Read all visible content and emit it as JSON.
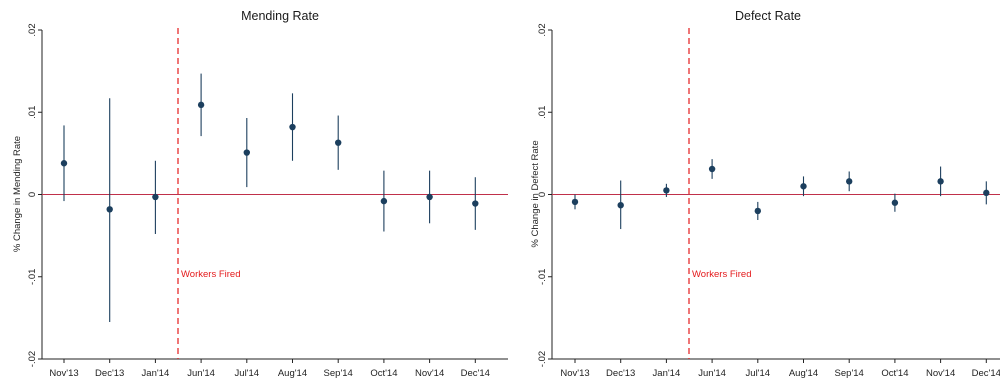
{
  "chart_data": [
    {
      "type": "scatter",
      "title": "Mending Rate",
      "ylabel": "% Change in Mending Rate",
      "xlabel": "",
      "categories": [
        "Nov'13",
        "Dec'13",
        "Jan'14",
        "Jun'14",
        "Jul'14",
        "Aug'14",
        "Sep'14",
        "Oct'14",
        "Nov'14",
        "Dec'14"
      ],
      "values": [
        0.0038,
        -0.0018,
        -0.0003,
        0.0109,
        0.0051,
        0.0082,
        0.0063,
        -0.0008,
        -0.0003,
        -0.0011
      ],
      "ci_low": [
        -0.0008,
        -0.0155,
        -0.0048,
        0.0071,
        0.0009,
        0.0041,
        0.003,
        -0.0045,
        -0.0035,
        -0.0043
      ],
      "ci_high": [
        0.0084,
        0.0117,
        0.0041,
        0.0147,
        0.0093,
        0.0123,
        0.0096,
        0.0029,
        0.0029,
        0.0021
      ],
      "ylim": [
        -0.02,
        0.02
      ],
      "yticks": [
        -0.02,
        -0.01,
        0,
        0.01,
        0.02
      ],
      "ytick_labels": [
        "-.02",
        "-.01",
        "0",
        ".01",
        ".02"
      ],
      "zero_line_color": "#c0304a",
      "marker_color": "#1c3f5e",
      "annotation": {
        "text": "Workers Fired",
        "color": "#e41a1c"
      },
      "grid": false
    },
    {
      "type": "scatter",
      "title": "Defect Rate",
      "ylabel": "% Change in Defect Rate",
      "xlabel": "",
      "categories": [
        "Nov'13",
        "Dec'13",
        "Jan'14",
        "Jun'14",
        "Jul'14",
        "Aug'14",
        "Sep'14",
        "Oct'14",
        "Nov'14",
        "Dec'14"
      ],
      "values": [
        -0.0009,
        -0.0013,
        0.0005,
        0.0031,
        -0.002,
        0.001,
        0.0016,
        -0.001,
        0.0016,
        0.0002
      ],
      "ci_low": [
        -0.0018,
        -0.0042,
        -0.0003,
        0.0019,
        -0.0031,
        -0.0002,
        0.0004,
        -0.0021,
        -0.0002,
        -0.0012
      ],
      "ci_high": [
        0.0,
        0.0017,
        0.0013,
        0.0043,
        -0.0009,
        0.0022,
        0.0028,
        0.0001,
        0.0034,
        0.0016
      ],
      "ylim": [
        -0.02,
        0.02
      ],
      "yticks": [
        -0.02,
        -0.01,
        0,
        0.01,
        0.02
      ],
      "ytick_labels": [
        "-.02",
        "-.01",
        "0",
        ".01",
        ".02"
      ],
      "zero_line_color": "#c0304a",
      "marker_color": "#1c3f5e",
      "annotation": {
        "text": "Workers Fired",
        "color": "#e41a1c"
      },
      "grid": false
    }
  ]
}
